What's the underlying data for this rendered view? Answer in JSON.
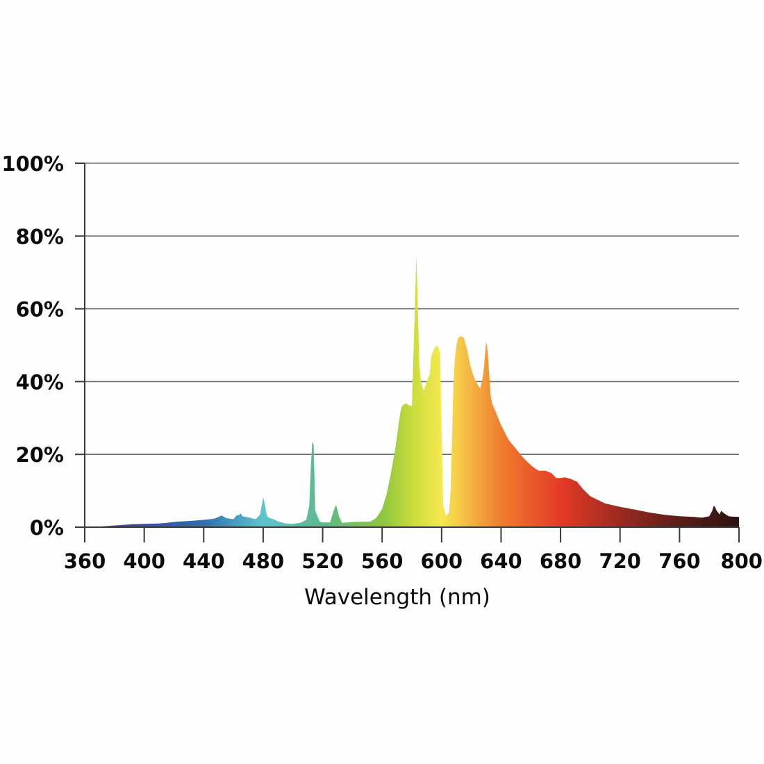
{
  "chart_data": {
    "type": "area",
    "title": "",
    "xlabel": "Wavelength (nm)",
    "ylabel": "",
    "xlim": [
      360,
      800
    ],
    "ylim": [
      0,
      100
    ],
    "grid": true,
    "x_ticks": [
      360,
      400,
      440,
      480,
      520,
      560,
      600,
      640,
      680,
      720,
      760,
      800
    ],
    "y_ticks": [
      0,
      20,
      40,
      60,
      80,
      100
    ],
    "y_tick_labels": [
      "0%",
      "20%",
      "40%",
      "60%",
      "80%",
      "100%"
    ],
    "spectrum_colors": [
      {
        "nm": 360,
        "color": "#4b3f8f"
      },
      {
        "nm": 400,
        "color": "#3a4e9c"
      },
      {
        "nm": 440,
        "color": "#2f6fb0"
      },
      {
        "nm": 480,
        "color": "#5ec4cf"
      },
      {
        "nm": 520,
        "color": "#5cb98a"
      },
      {
        "nm": 560,
        "color": "#8cc63f"
      },
      {
        "nm": 580,
        "color": "#c9dc3c"
      },
      {
        "nm": 600,
        "color": "#f6e950"
      },
      {
        "nm": 620,
        "color": "#f4b342"
      },
      {
        "nm": 640,
        "color": "#ef7d2e"
      },
      {
        "nm": 680,
        "color": "#e43a26"
      },
      {
        "nm": 720,
        "color": "#9b2a20"
      },
      {
        "nm": 760,
        "color": "#5a1f18"
      },
      {
        "nm": 800,
        "color": "#2b1310"
      }
    ],
    "series": [
      {
        "x": [
          365,
          375,
          385,
          392,
          400,
          410,
          415,
          422,
          430,
          440,
          447,
          450,
          452,
          455,
          460,
          462,
          464,
          465,
          466,
          470,
          475,
          478,
          479,
          480,
          481,
          482,
          483,
          485,
          487,
          490,
          495,
          500,
          505,
          509,
          511,
          512,
          513,
          514,
          515,
          518,
          520,
          525,
          527,
          529,
          531,
          533,
          540,
          545,
          552,
          556,
          560,
          563,
          566,
          569,
          571,
          572,
          573,
          574,
          576,
          578,
          580,
          582,
          583,
          584,
          585,
          586,
          588,
          590,
          592,
          593,
          595,
          597,
          599,
          601,
          603,
          605,
          606,
          607,
          608,
          609,
          610,
          611,
          613,
          615,
          617,
          619,
          621,
          623,
          626,
          628,
          630,
          631,
          632,
          633,
          634,
          636,
          640,
          645,
          650,
          655,
          660,
          665,
          670,
          674,
          677,
          680,
          683,
          687,
          691,
          695,
          700,
          710,
          720,
          730,
          740,
          750,
          760,
          770,
          775,
          780,
          782,
          783,
          784,
          785,
          786,
          787,
          788,
          790,
          793,
          795,
          800
        ],
        "values": [
          0,
          0.3,
          0.6,
          0.8,
          0.9,
          1.0,
          1.2,
          1.5,
          1.7,
          2.0,
          2.3,
          2.8,
          3.2,
          2.5,
          2.2,
          3.2,
          3.4,
          3.8,
          3.0,
          2.7,
          2.2,
          3.5,
          6.0,
          8.2,
          6.5,
          4.0,
          2.8,
          2.4,
          2.2,
          1.6,
          1.0,
          0.9,
          1.2,
          2.0,
          6.0,
          16.0,
          23.5,
          22.5,
          4.5,
          1.5,
          1.3,
          1.3,
          4.0,
          6.2,
          3.0,
          1.2,
          1.4,
          1.5,
          1.5,
          2.5,
          5.0,
          9.0,
          15.0,
          22.0,
          28.0,
          31.0,
          33.0,
          33.5,
          34.0,
          33.5,
          33.3,
          60.0,
          75.0,
          60.0,
          45.0,
          40.0,
          37.5,
          40.0,
          42.0,
          47.0,
          49.0,
          50.0,
          48.0,
          6.0,
          3.0,
          4.0,
          10.0,
          25.0,
          40.0,
          47.0,
          50.0,
          52.0,
          52.5,
          52.0,
          49.0,
          45.0,
          42.0,
          40.0,
          38.0,
          42.0,
          51.0,
          48.0,
          42.0,
          36.0,
          34.0,
          32.0,
          28.0,
          24.0,
          21.5,
          19.0,
          17.0,
          15.5,
          15.5,
          14.8,
          13.5,
          13.5,
          13.7,
          13.2,
          12.5,
          10.5,
          8.5,
          6.5,
          5.6,
          4.8,
          4.0,
          3.4,
          3.0,
          2.8,
          2.6,
          3.0,
          4.5,
          5.9,
          5.5,
          4.5,
          4.0,
          3.5,
          4.5,
          3.8,
          3.0,
          2.9,
          2.8
        ]
      }
    ]
  }
}
